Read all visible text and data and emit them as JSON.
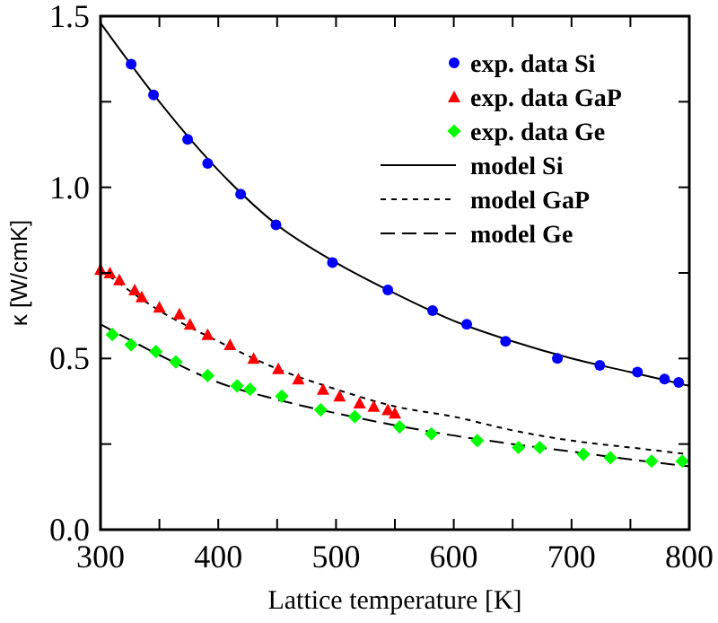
{
  "chart_data": {
    "type": "line",
    "xlabel": "Lattice temperature [K]",
    "ylabel": "κ [W/cmK]",
    "xlim": [
      300,
      800
    ],
    "ylim": [
      0,
      1.5
    ],
    "xticks": [
      300,
      {
        "value": 350,
        "label": null
      },
      400,
      {
        "value": 450,
        "label": null
      },
      500,
      {
        "value": 550,
        "label": null
      },
      600,
      {
        "value": 650,
        "label": null
      },
      700,
      {
        "value": 750,
        "label": null
      },
      800
    ],
    "yticks": [
      {
        "value": 0,
        "label": "0.0"
      },
      {
        "value": 0.25,
        "label": null
      },
      {
        "value": 0.5,
        "label": "0.5"
      },
      {
        "value": 0.75,
        "label": null
      },
      {
        "value": 1,
        "label": "1.0"
      },
      {
        "value": 1.25,
        "label": null
      },
      {
        "value": 1.5,
        "label": "1.5"
      }
    ],
    "grid": false,
    "legend": "top right",
    "series": [
      {
        "name": "exp. data Si",
        "type": "scatter",
        "marker": "circle",
        "color": "#0000ff",
        "x": [
          326,
          345,
          374,
          391,
          419,
          449,
          497,
          544,
          582,
          611,
          644,
          688,
          724,
          756,
          779,
          791
        ],
        "values": [
          1.36,
          1.27,
          1.14,
          1.07,
          0.98,
          0.89,
          0.78,
          0.7,
          0.64,
          0.6,
          0.55,
          0.5,
          0.48,
          0.46,
          0.44,
          0.43
        ]
      },
      {
        "name": "exp. data GaP",
        "type": "scatter",
        "marker": "triangle",
        "color": "#ff0000",
        "x": [
          300,
          308,
          316,
          329,
          335,
          350,
          367,
          376,
          391,
          410,
          430,
          451,
          468,
          489,
          503,
          520,
          532,
          544,
          550
        ],
        "values": [
          0.76,
          0.75,
          0.73,
          0.7,
          0.68,
          0.65,
          0.63,
          0.6,
          0.57,
          0.54,
          0.5,
          0.47,
          0.44,
          0.41,
          0.39,
          0.37,
          0.36,
          0.35,
          0.34
        ]
      },
      {
        "name": "exp. data Ge",
        "type": "scatter",
        "marker": "diamond",
        "color": "#00ff00",
        "x": [
          310,
          326,
          347,
          364,
          391,
          416,
          427,
          454,
          487,
          516,
          554,
          581,
          620,
          655,
          673,
          710,
          733,
          768,
          794
        ],
        "values": [
          0.57,
          0.54,
          0.52,
          0.49,
          0.45,
          0.42,
          0.41,
          0.39,
          0.35,
          0.33,
          0.3,
          0.28,
          0.26,
          0.24,
          0.24,
          0.22,
          0.21,
          0.2,
          0.2
        ]
      },
      {
        "name": "model Si",
        "marker": "none",
        "line_style": "solid",
        "color": "#000000",
        "x": [
          300,
          350,
          400,
          450,
          500,
          550,
          600,
          650,
          700,
          750,
          800
        ],
        "values": [
          1.48,
          1.25,
          1.05,
          0.89,
          0.78,
          0.69,
          0.61,
          0.55,
          0.5,
          0.46,
          0.42
        ]
      },
      {
        "name": "model GaP",
        "marker": "none",
        "line_style": "dotted",
        "color": "#000000",
        "x": [
          300,
          350,
          400,
          450,
          500,
          550,
          600,
          650,
          700,
          750,
          800
        ],
        "values": [
          0.76,
          0.64,
          0.55,
          0.47,
          0.41,
          0.36,
          0.33,
          0.29,
          0.26,
          0.24,
          0.22
        ]
      },
      {
        "name": "model Ge",
        "marker": "none",
        "line_style": "dashed",
        "color": "#000000",
        "x": [
          300,
          350,
          400,
          450,
          500,
          550,
          600,
          650,
          700,
          750,
          800
        ],
        "values": [
          0.6,
          0.51,
          0.43,
          0.38,
          0.34,
          0.305,
          0.275,
          0.25,
          0.228,
          0.205,
          0.185
        ]
      }
    ]
  }
}
